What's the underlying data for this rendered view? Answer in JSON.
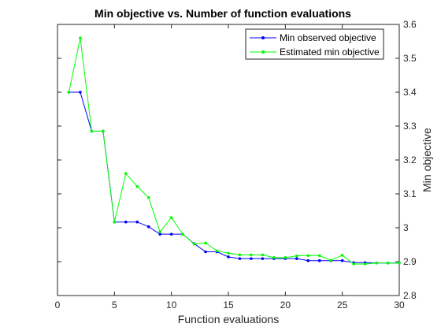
{
  "chart_data": {
    "type": "line",
    "title": "Min objective vs. Number of function evaluations",
    "xlabel": "Function evaluations",
    "ylabel": "Min objective",
    "xlim": [
      0,
      30
    ],
    "ylim": [
      2.8,
      3.6
    ],
    "xticks": [
      0,
      5,
      10,
      15,
      20,
      25,
      30
    ],
    "yticks": [
      2.8,
      2.9,
      3.0,
      3.1,
      3.2,
      3.3,
      3.4,
      3.5,
      3.6
    ],
    "ytick_labels": [
      "2.8",
      "2.9",
      "3",
      "3.1",
      "3.2",
      "3.3",
      "3.4",
      "3.5",
      "3.6"
    ],
    "y_axis_position": "right",
    "grid": false,
    "legend_position": "top-right",
    "x": [
      1,
      2,
      3,
      4,
      5,
      6,
      7,
      8,
      9,
      10,
      11,
      12,
      13,
      14,
      15,
      16,
      17,
      18,
      19,
      20,
      21,
      22,
      23,
      24,
      25,
      26,
      27,
      28,
      29,
      30
    ],
    "series": [
      {
        "name": "Min observed objective",
        "color": "#0000ff",
        "values": [
          3.4,
          3.4,
          3.285,
          3.285,
          3.017,
          3.017,
          3.017,
          3.003,
          2.981,
          2.981,
          2.981,
          2.953,
          2.929,
          2.929,
          2.914,
          2.909,
          2.909,
          2.909,
          2.909,
          2.909,
          2.909,
          2.903,
          2.903,
          2.903,
          2.903,
          2.897,
          2.897,
          2.896,
          2.896,
          2.896
        ]
      },
      {
        "name": "Estimated min objective",
        "color": "#00ff00",
        "values": [
          3.4,
          3.56,
          3.285,
          3.285,
          3.017,
          3.16,
          3.122,
          3.089,
          2.988,
          3.03,
          2.981,
          2.952,
          2.955,
          2.932,
          2.925,
          2.92,
          2.92,
          2.92,
          2.912,
          2.912,
          2.917,
          2.918,
          2.918,
          2.904,
          2.919,
          2.893,
          2.893,
          2.896,
          2.896,
          2.896
        ]
      }
    ]
  }
}
